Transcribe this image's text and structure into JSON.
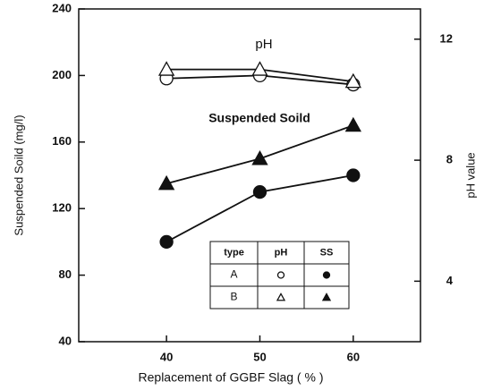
{
  "chart_data": {
    "type": "line",
    "x_label": "Replacement of  GGBF Slag ( % )",
    "y_label": "Suspended Soild (mg/l)",
    "y2_label": "pH value",
    "annotations": [
      "pH",
      "Suspended Soild"
    ],
    "x": [
      40,
      50,
      60
    ],
    "xlim": [
      30.6,
      67.2
    ],
    "xticks": [
      40,
      50,
      60
    ],
    "ylim": [
      40,
      240
    ],
    "yticks": [
      40,
      80,
      120,
      160,
      200,
      240
    ],
    "y2lim": [
      2,
      13
    ],
    "y2ticks": [
      4,
      8,
      12
    ],
    "series": [
      {
        "color": "#111111",
        "marker": "circle",
        "filled": false,
        "axis": "y2",
        "values": [
          10.7,
          10.8,
          10.5
        ]
      },
      {
        "color": "#111111",
        "marker": "triangle",
        "filled": false,
        "axis": "y2",
        "values": [
          11.0,
          11.0,
          10.6
        ]
      },
      {
        "color": "#111111",
        "marker": "circle",
        "filled": true,
        "values": [
          100,
          130,
          140
        ]
      },
      {
        "color": "#111111",
        "marker": "triangle",
        "filled": true,
        "values": [
          135,
          150,
          170
        ]
      }
    ],
    "legend_table": {
      "header": [
        "type",
        "pH",
        "SS"
      ],
      "rows": [
        "A",
        "B"
      ]
    }
  }
}
